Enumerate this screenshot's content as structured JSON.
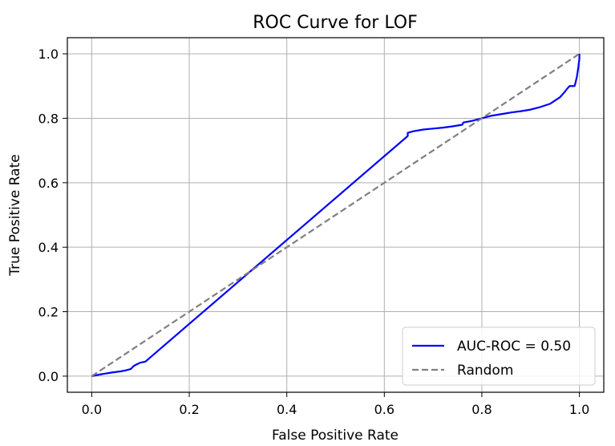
{
  "chart_data": {
    "type": "line",
    "title": "ROC Curve for LOF",
    "xlabel": "False Positive Rate",
    "ylabel": "True Positive Rate",
    "xlim": [
      -0.05,
      1.05
    ],
    "ylim": [
      -0.05,
      1.05
    ],
    "xticks": [
      "0.0",
      "0.2",
      "0.4",
      "0.6",
      "0.8",
      "1.0"
    ],
    "yticks": [
      "0.0",
      "0.2",
      "0.4",
      "0.6",
      "0.8",
      "1.0"
    ],
    "grid": true,
    "legend_position": "lower-right",
    "series": [
      {
        "name": "AUC-ROC = 0.50",
        "color": "#0000ff",
        "style": "solid",
        "x": [
          0.0,
          0.02,
          0.04,
          0.06,
          0.07,
          0.08,
          0.085,
          0.09,
          0.1,
          0.11,
          0.648,
          0.648,
          0.66,
          0.68,
          0.7,
          0.72,
          0.74,
          0.76,
          0.762,
          0.78,
          0.8,
          0.82,
          0.84,
          0.86,
          0.88,
          0.9,
          0.92,
          0.94,
          0.95,
          0.96,
          0.97,
          0.975,
          0.98,
          0.99,
          0.992,
          0.995,
          0.998,
          1.0,
          1.0
        ],
        "y": [
          0.0,
          0.006,
          0.011,
          0.015,
          0.018,
          0.022,
          0.03,
          0.035,
          0.042,
          0.045,
          0.745,
          0.755,
          0.76,
          0.765,
          0.768,
          0.771,
          0.775,
          0.78,
          0.787,
          0.792,
          0.8,
          0.808,
          0.813,
          0.818,
          0.822,
          0.827,
          0.835,
          0.845,
          0.855,
          0.865,
          0.882,
          0.892,
          0.9,
          0.9,
          0.91,
          0.93,
          0.96,
          0.985,
          1.0
        ]
      },
      {
        "name": "Random",
        "color": "#808080",
        "style": "dashed",
        "x": [
          0,
          1
        ],
        "y": [
          0,
          1
        ]
      }
    ]
  }
}
